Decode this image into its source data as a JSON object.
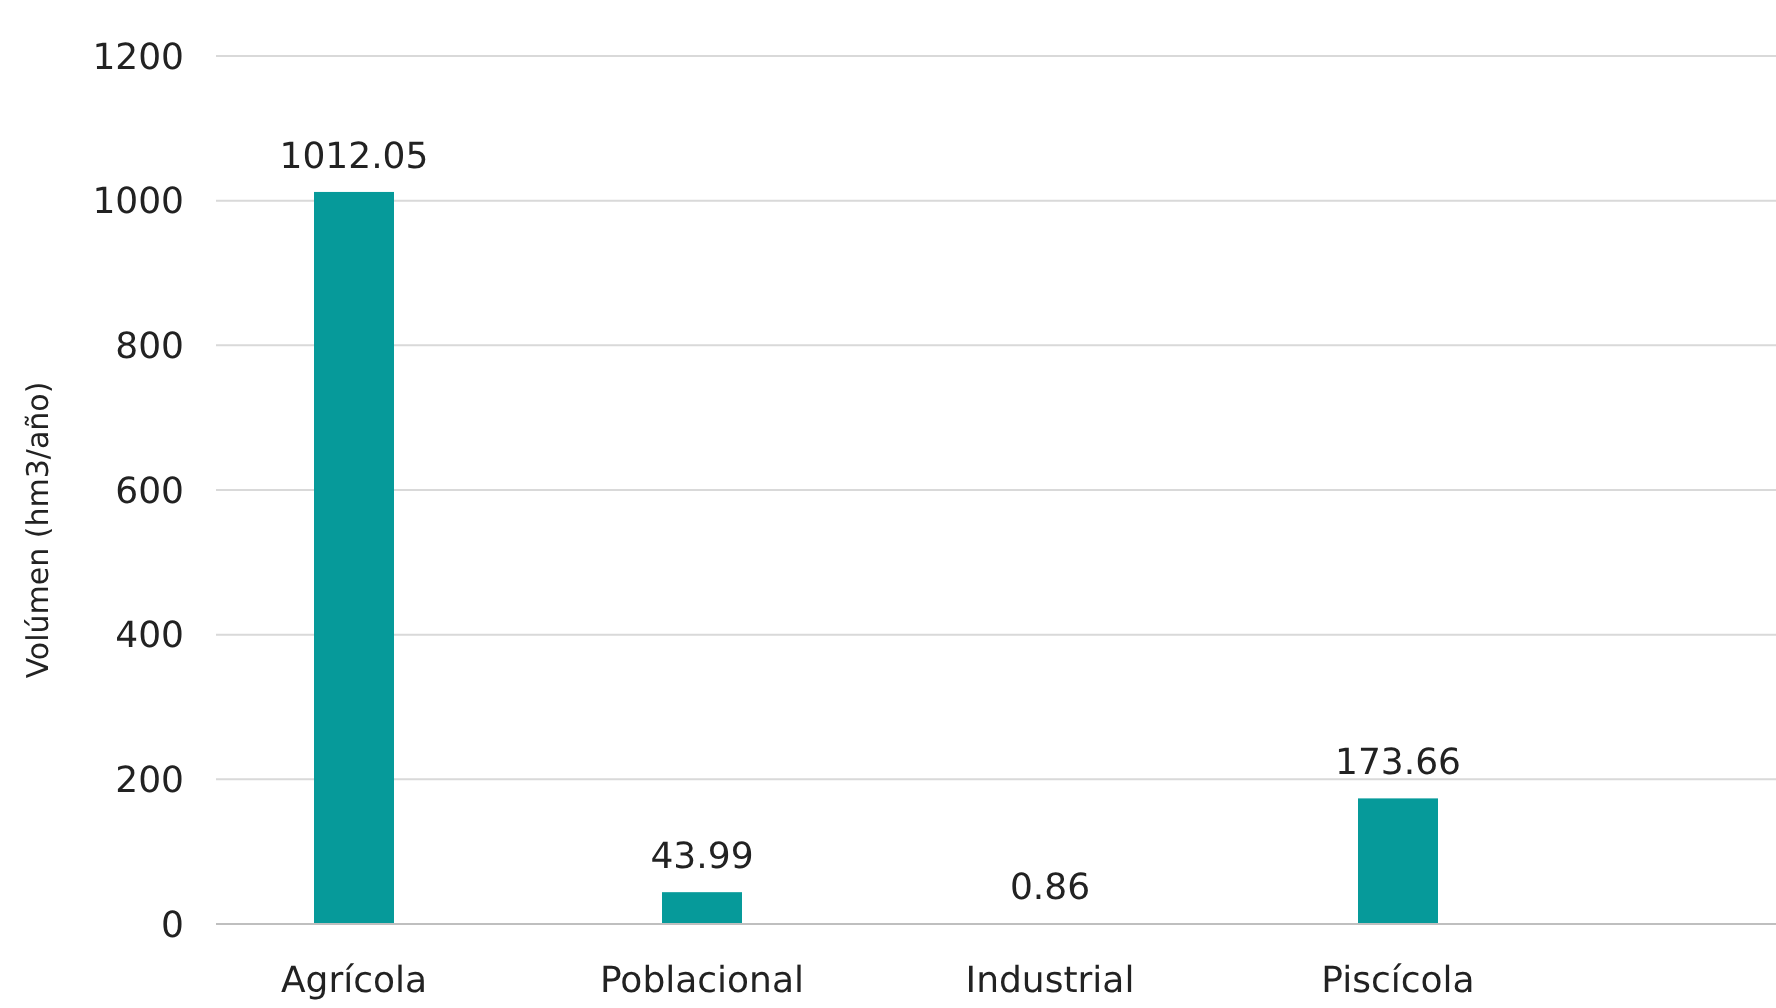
{
  "chart_data": {
    "type": "bar",
    "ylabel": "Volúmen (hm3/año)",
    "categories": [
      "Agrícola",
      "Poblacional",
      "Industrial",
      "Piscícola"
    ],
    "values": [
      1012.05,
      43.99,
      0.86,
      173.66
    ],
    "color": "#069a9a",
    "ylim": [
      0,
      1200
    ],
    "yticks": [
      0,
      200,
      400,
      600,
      800,
      1000,
      1200
    ],
    "grid": "y",
    "data_labels": true
  }
}
